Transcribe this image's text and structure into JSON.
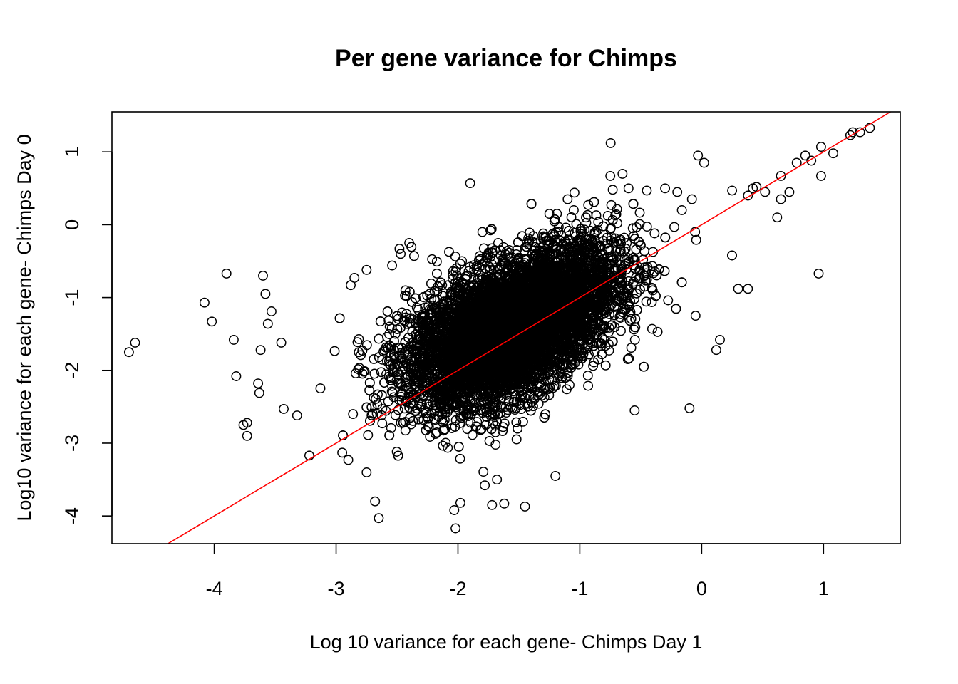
{
  "chart_data": {
    "type": "scatter",
    "title": "Per gene variance for Chimps",
    "xlabel": "Log 10 variance for each gene- Chimps Day 1",
    "ylabel": "Log10 variance for each gene- Chimps Day 0",
    "xlim": [
      -4.84,
      1.63
    ],
    "ylim": [
      -4.38,
      1.55
    ],
    "x_ticks": [
      -4,
      -3,
      -2,
      -1,
      0,
      1
    ],
    "y_ticks": [
      -4,
      -3,
      -2,
      -1,
      0,
      1
    ],
    "x_tick_labels": [
      "-4",
      "-3",
      "-2",
      "-1",
      "0",
      "1"
    ],
    "y_tick_labels": [
      "-4",
      "-3",
      "-2",
      "-1",
      "0",
      "1"
    ],
    "grid": false,
    "legend": "none",
    "point_color": "#000000",
    "line_color": "#ff0000",
    "reference_line": {
      "slope": 1,
      "intercept": 0
    },
    "dense_cluster": {
      "center": [
        -1.55,
        -1.45
      ],
      "slope": 0.55,
      "spread": 0.45,
      "count": 9000
    },
    "points": [
      [
        -4.7,
        -1.75
      ],
      [
        -4.65,
        -1.62
      ],
      [
        -4.08,
        -1.07
      ],
      [
        -4.02,
        -1.33
      ],
      [
        -3.9,
        -0.67
      ],
      [
        -3.84,
        -1.58
      ],
      [
        -3.82,
        -2.08
      ],
      [
        -3.76,
        -2.75
      ],
      [
        -3.73,
        -2.72
      ],
      [
        -3.73,
        -2.9
      ],
      [
        -3.64,
        -2.18
      ],
      [
        -3.63,
        -2.31
      ],
      [
        -3.62,
        -1.72
      ],
      [
        -3.6,
        -0.7
      ],
      [
        -3.58,
        -0.95
      ],
      [
        -3.56,
        -1.36
      ],
      [
        -3.53,
        -1.19
      ],
      [
        -3.45,
        -1.62
      ],
      [
        -3.43,
        -2.53
      ],
      [
        -3.32,
        -2.62
      ],
      [
        -3.22,
        -3.17
      ],
      [
        -2.95,
        -3.13
      ],
      [
        -2.9,
        -3.23
      ],
      [
        -2.88,
        -0.83
      ],
      [
        -2.85,
        -0.73
      ],
      [
        -2.75,
        -3.4
      ],
      [
        -2.75,
        -0.62
      ],
      [
        -2.68,
        -3.8
      ],
      [
        -2.65,
        -4.03
      ],
      [
        -2.48,
        -0.33
      ],
      [
        -2.47,
        -0.4
      ],
      [
        -2.4,
        -0.25
      ],
      [
        -2.36,
        -0.43
      ],
      [
        -2.03,
        -3.92
      ],
      [
        -2.02,
        -4.17
      ],
      [
        -1.98,
        -3.82
      ],
      [
        -1.9,
        0.57
      ],
      [
        -1.8,
        -0.1
      ],
      [
        -1.78,
        -3.58
      ],
      [
        -1.72,
        -3.85
      ],
      [
        -1.68,
        -3.5
      ],
      [
        -1.62,
        -3.83
      ],
      [
        -1.45,
        -3.87
      ],
      [
        -1.3,
        -0.12
      ],
      [
        -1.25,
        0.15
      ],
      [
        -1.2,
        -3.45
      ],
      [
        -1.1,
        0.35
      ],
      [
        -1.05,
        0.2
      ],
      [
        -0.95,
        0.1
      ],
      [
        -0.75,
        0.67
      ],
      [
        -0.73,
        0.48
      ],
      [
        -0.65,
        0.7
      ],
      [
        -0.6,
        0.5
      ],
      [
        -0.55,
        -2.55
      ],
      [
        -0.45,
        0.47
      ],
      [
        -0.3,
        0.5
      ],
      [
        -0.2,
        0.45
      ],
      [
        -0.1,
        -2.52
      ],
      [
        -0.08,
        0.35
      ],
      [
        -0.05,
        -1.25
      ],
      [
        -0.03,
        0.95
      ],
      [
        0.02,
        0.85
      ],
      [
        0.12,
        -1.72
      ],
      [
        0.15,
        -1.58
      ],
      [
        0.25,
        0.47
      ],
      [
        0.3,
        -0.88
      ],
      [
        0.38,
        -0.88
      ],
      [
        0.38,
        0.4
      ],
      [
        0.42,
        0.5
      ],
      [
        0.45,
        0.52
      ],
      [
        0.52,
        0.45
      ],
      [
        0.62,
        0.1
      ],
      [
        0.65,
        0.35
      ],
      [
        0.65,
        0.67
      ],
      [
        0.72,
        0.45
      ],
      [
        0.78,
        0.85
      ],
      [
        0.85,
        0.95
      ],
      [
        0.9,
        0.88
      ],
      [
        0.96,
        -0.67
      ],
      [
        0.98,
        1.07
      ],
      [
        0.98,
        0.67
      ],
      [
        1.08,
        0.98
      ],
      [
        1.22,
        1.23
      ],
      [
        1.24,
        1.27
      ],
      [
        1.3,
        1.27
      ],
      [
        1.38,
        1.33
      ]
    ]
  }
}
